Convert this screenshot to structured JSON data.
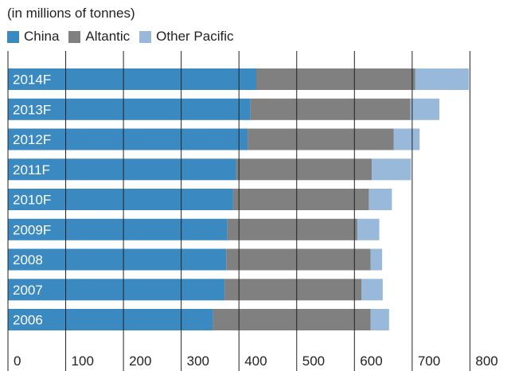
{
  "subtitle": "(in millions of tonnes)",
  "legend": [
    {
      "label": "China",
      "color": "#3a89c0"
    },
    {
      "label": "Altantic",
      "color": "#808080"
    },
    {
      "label": "Other Pacific",
      "color": "#99b9da"
    }
  ],
  "chart_data": {
    "type": "bar",
    "orientation": "horizontal",
    "stacked": true,
    "subtitle": "(in millions of tonnes)",
    "categories": [
      "2014F",
      "2013F",
      "2012F",
      "2011F",
      "2010F",
      "2009F",
      "2008",
      "2007",
      "2006"
    ],
    "series": [
      {
        "name": "China",
        "color": "#3a89c0",
        "values": [
          430,
          420,
          415,
          395,
          390,
          380,
          378,
          375,
          355
        ]
      },
      {
        "name": "Altantic",
        "color": "#808080",
        "values": [
          275,
          277,
          253,
          235,
          235,
          225,
          250,
          237,
          273
        ]
      },
      {
        "name": "Other Pacific",
        "color": "#99b9da",
        "values": [
          93,
          50,
          45,
          68,
          40,
          38,
          20,
          37,
          32
        ]
      }
    ],
    "xticks": [
      "0",
      "100",
      "200",
      "300",
      "400",
      "500",
      "600",
      "700",
      "800"
    ],
    "xlim": [
      0,
      800
    ],
    "grid": true,
    "legend_position": "top-left"
  }
}
